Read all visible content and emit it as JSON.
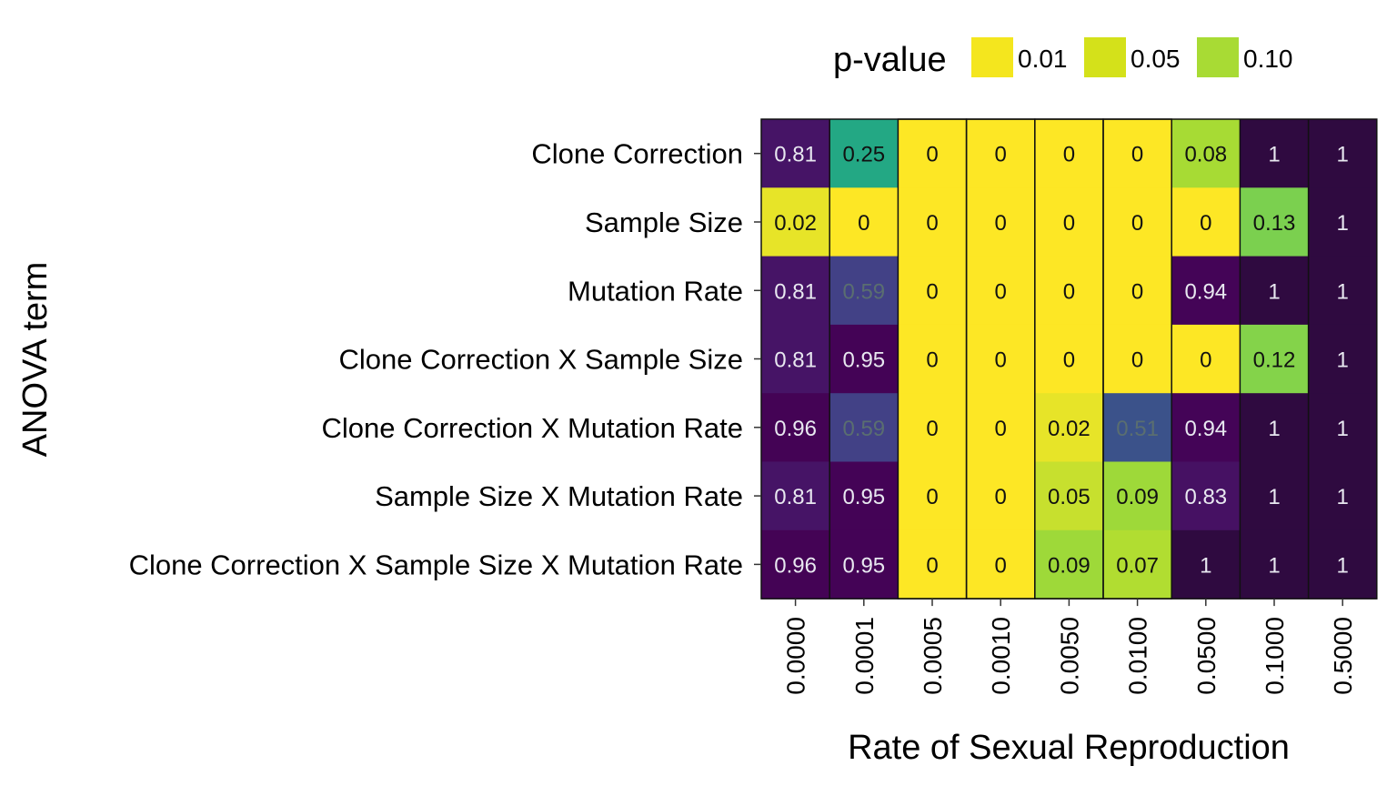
{
  "chart_data": {
    "type": "heatmap",
    "xlabel": "Rate of Sexual Reproduction",
    "ylabel": "ANOVA term",
    "x_categories": [
      "0.0000",
      "0.0001",
      "0.0005",
      "0.0010",
      "0.0050",
      "0.0100",
      "0.0500",
      "0.1000",
      "0.5000"
    ],
    "y_categories": [
      "Clone Correction",
      "Sample Size",
      "Mutation Rate",
      "Clone Correction X Sample Size",
      "Clone Correction X Mutation Rate",
      "Sample Size X Mutation Rate",
      "Clone Correction X Sample Size X Mutation Rate"
    ],
    "values": [
      [
        0.81,
        0.25,
        0,
        0,
        0,
        0,
        0.08,
        1,
        1
      ],
      [
        0.02,
        0,
        0,
        0,
        0,
        0,
        0,
        0.13,
        1
      ],
      [
        0.81,
        0.59,
        0,
        0,
        0,
        0,
        0.94,
        1,
        1
      ],
      [
        0.81,
        0.95,
        0,
        0,
        0,
        0,
        0,
        0.12,
        1
      ],
      [
        0.96,
        0.59,
        0,
        0,
        0.02,
        0.51,
        0.94,
        1,
        1
      ],
      [
        0.81,
        0.95,
        0,
        0,
        0.05,
        0.09,
        0.83,
        1,
        1
      ],
      [
        0.96,
        0.95,
        0,
        0,
        0.09,
        0.07,
        1,
        1,
        1
      ]
    ],
    "cell_labels": [
      [
        "0.81",
        "0.25",
        "0",
        "0",
        "0",
        "0",
        "0.08",
        "1",
        "1"
      ],
      [
        "0.02",
        "0",
        "0",
        "0",
        "0",
        "0",
        "0",
        "0.13",
        "1"
      ],
      [
        "0.81",
        "0.59",
        "0",
        "0",
        "0",
        "0",
        "0.94",
        "1",
        "1"
      ],
      [
        "0.81",
        "0.95",
        "0",
        "0",
        "0",
        "0",
        "0",
        "0.12",
        "1"
      ],
      [
        "0.96",
        "0.59",
        "0",
        "0",
        "0.02",
        "0.51",
        "0.94",
        "1",
        "1"
      ],
      [
        "0.81",
        "0.95",
        "0",
        "0",
        "0.05",
        "0.09",
        "0.83",
        "1",
        "1"
      ],
      [
        "0.96",
        "0.95",
        "0",
        "0",
        "0.09",
        "0.07",
        "1",
        "1",
        "1"
      ]
    ],
    "colormap": "viridis (reversed)",
    "outlined_columns": [
      "0.0005",
      "0.0010",
      "0.0050",
      "0.0100"
    ],
    "legend": {
      "title": "p-value",
      "position": "top-right",
      "entries": [
        {
          "label": "0.01",
          "color": "#f4e61e"
        },
        {
          "label": "0.05",
          "color": "#d4e11a"
        },
        {
          "label": "0.10",
          "color": "#a8db34"
        }
      ]
    }
  }
}
